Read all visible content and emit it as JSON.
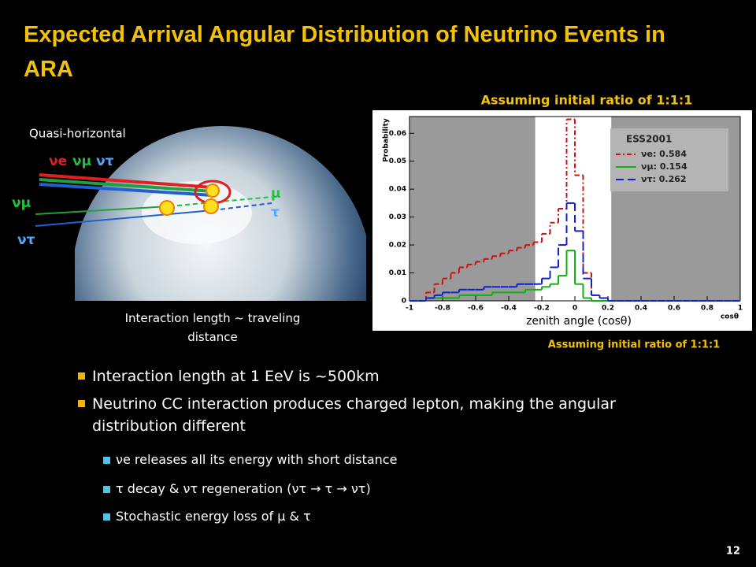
{
  "title": "Expected Arrival Angular Distribution of Neutrino Events in ARA",
  "figure": {
    "caption_top": "Quasi-horizontal",
    "labels": [
      "νe",
      "νμ",
      "ντ",
      "νμ",
      "ντ",
      "μ",
      "τ"
    ],
    "caption_bottom": "Interaction length ~ traveling distance"
  },
  "chart_data": {
    "type": "histogram",
    "title": "Assuming initial ratio of 1:1:1",
    "subtitle": "Assuming initial ratio of 1:1:1",
    "annotation": "zenith angle (cosθ)",
    "xlabel": "cosθ",
    "ylabel": "Probability",
    "legend_title": "ESS2001",
    "bins": [
      -1,
      -0.95,
      -0.9,
      -0.85,
      -0.8,
      -0.75,
      -0.7,
      -0.65,
      -0.6,
      -0.55,
      -0.5,
      -0.45,
      -0.4,
      -0.35,
      -0.3,
      -0.25,
      -0.2,
      -0.15,
      -0.1,
      -0.05,
      0,
      0.05,
      0.1,
      0.15,
      0.2,
      0.25,
      0.3,
      0.35,
      0.4,
      0.45,
      0.5,
      0.55,
      0.6,
      0.65,
      0.7,
      0.75,
      0.8,
      0.85,
      0.9,
      0.95,
      1
    ],
    "series": [
      {
        "name": "νe: 0.584",
        "color": "#d01010",
        "dash": "6 3 2 3",
        "values": [
          0,
          0,
          0.003,
          0.006,
          0.008,
          0.01,
          0.012,
          0.013,
          0.014,
          0.015,
          0.016,
          0.017,
          0.018,
          0.019,
          0.02,
          0.021,
          0.024,
          0.028,
          0.033,
          0.065,
          0.045,
          0.01,
          0.002,
          0.001,
          0,
          0,
          0,
          0,
          0,
          0,
          0,
          0,
          0,
          0,
          0,
          0,
          0,
          0,
          0,
          0
        ]
      },
      {
        "name": "νμ: 0.154",
        "color": "#10b010",
        "dash": "",
        "values": [
          0,
          0,
          0.001,
          0.001,
          0.001,
          0.001,
          0.002,
          0.002,
          0.002,
          0.002,
          0.003,
          0.003,
          0.003,
          0.003,
          0.004,
          0.004,
          0.005,
          0.006,
          0.009,
          0.018,
          0.006,
          0.001,
          0,
          0,
          0,
          0,
          0,
          0,
          0,
          0,
          0,
          0,
          0,
          0,
          0,
          0,
          0,
          0,
          0,
          0
        ]
      },
      {
        "name": "ντ: 0.262",
        "color": "#1020d0",
        "dash": "10 5",
        "values": [
          0,
          0,
          0.001,
          0.002,
          0.003,
          0.003,
          0.004,
          0.004,
          0.004,
          0.005,
          0.005,
          0.005,
          0.005,
          0.006,
          0.006,
          0.006,
          0.008,
          0.012,
          0.02,
          0.035,
          0.025,
          0.008,
          0.002,
          0.001,
          0,
          0,
          0,
          0,
          0,
          0,
          0,
          0,
          0,
          0,
          0,
          0,
          0,
          0,
          0,
          0
        ]
      }
    ],
    "shaded_regions": [
      [
        -1,
        -0.24
      ],
      [
        0.22,
        1
      ]
    ],
    "xlim": [
      -1,
      1
    ],
    "xticks": [
      -1,
      -0.8,
      -0.6,
      -0.4,
      -0.2,
      0,
      0.2,
      0.4,
      0.6,
      0.8,
      1
    ],
    "ylim": [
      0,
      0.066
    ],
    "yticks": [
      0,
      0.01,
      0.02,
      0.03,
      0.04,
      0.05,
      0.06
    ]
  },
  "bullets": [
    {
      "text": "Interaction length at 1 EeV is ~500km"
    },
    {
      "text": "Neutrino CC interaction produces charged lepton, making the angular distribution different"
    }
  ],
  "sub_bullets": [
    "νe releases all its energy with short distance",
    "τ decay & ντ regeneration (ντ → τ → ντ)",
    "Stochastic energy loss of μ & τ"
  ],
  "page_number": "12"
}
